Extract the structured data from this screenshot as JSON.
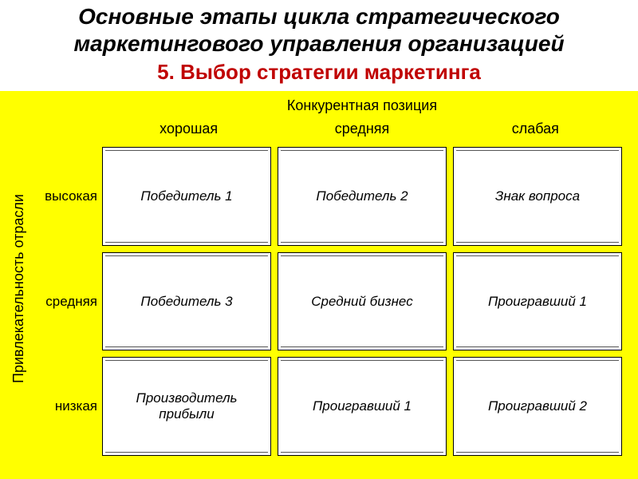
{
  "title": {
    "main": "Основные этапы цикла стратегического маркетингового управления организацией",
    "sub": "5. Выбор стратегии маркетинга"
  },
  "matrix": {
    "type": "table",
    "top_axis_label": "Конкурентная позиция",
    "left_axis_label": "Привлекательность отрасли",
    "columns": [
      "хорошая",
      "средняя",
      "слабая"
    ],
    "row_labels": [
      "высокая",
      "средняя",
      "низкая"
    ],
    "rows": [
      [
        "Победитель 1",
        "Победитель 2",
        "Знак вопроса"
      ],
      [
        "Победитель 3",
        "Средний бизнес",
        "Проигравший 1"
      ],
      [
        "Производитель прибыли",
        "Проигравший 1",
        "Проигравший 2"
      ]
    ],
    "styling": {
      "matrix_background": "#ffff00",
      "cell_background": "#ffffff",
      "cell_border_color": "#000000",
      "title_color": "#000000",
      "subtitle_color": "#c00000",
      "text_color": "#000000",
      "title_fontsize": 28,
      "subtitle_fontsize": 26,
      "header_fontsize": 18,
      "cell_fontsize": 17,
      "cell_font_style": "italic",
      "cell_gap": 8
    }
  }
}
